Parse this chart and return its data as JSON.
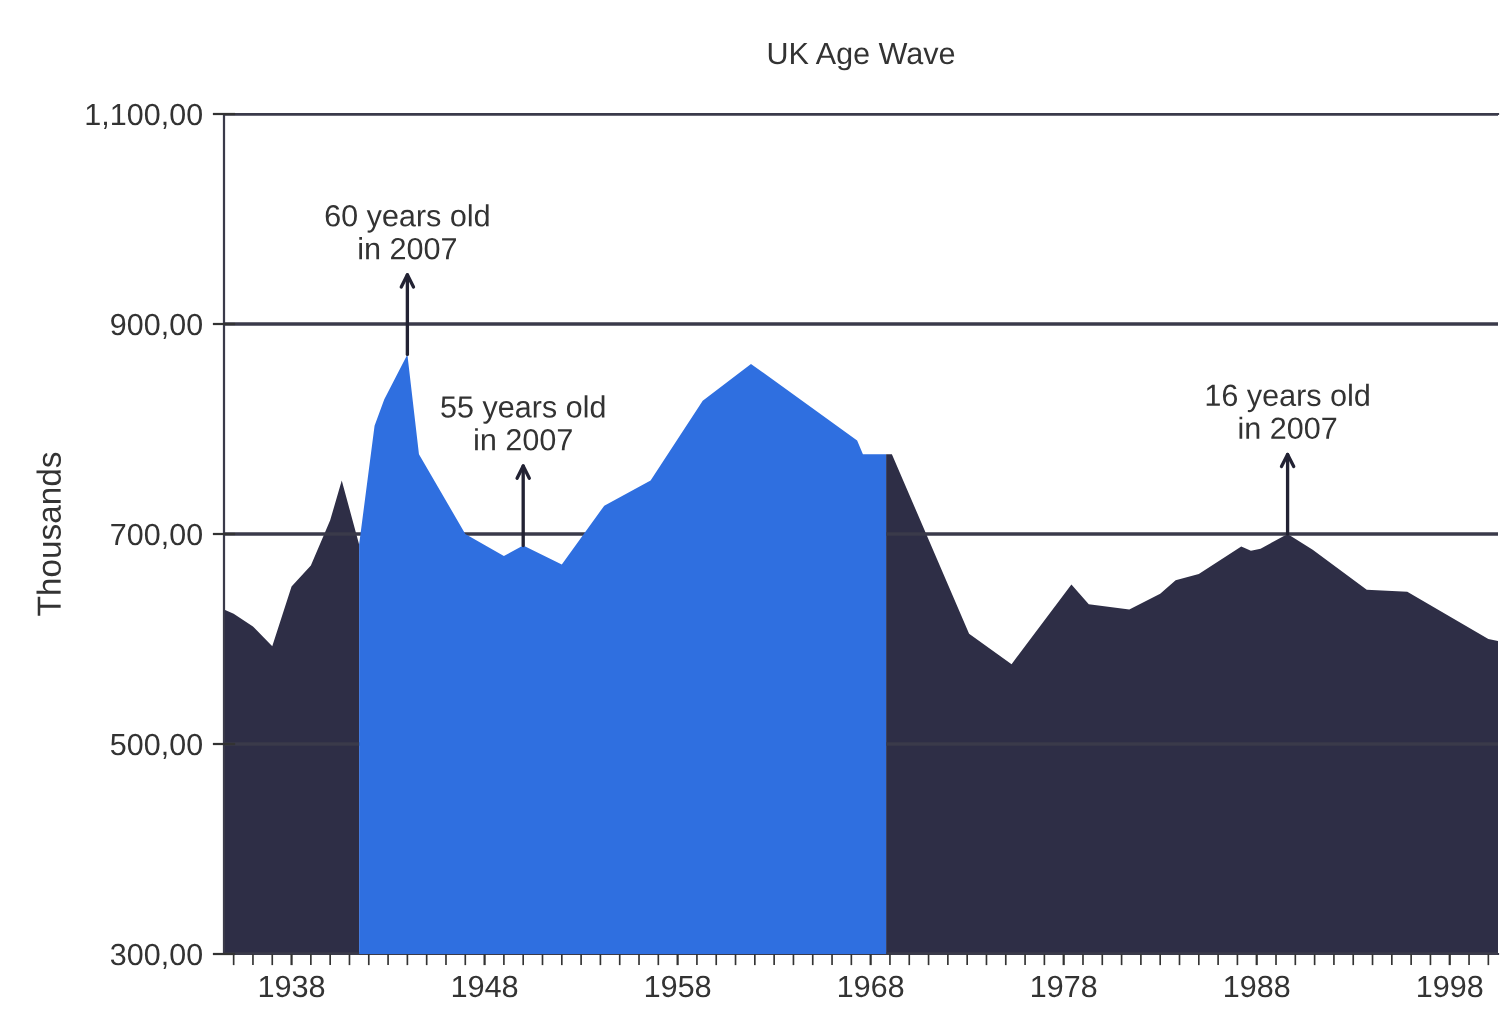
{
  "chart_data": {
    "type": "area",
    "title": "UK Age Wave",
    "ylabel": "Thousands",
    "series": [
      {
        "color": "#2e2e46",
        "x": [
          1934.5,
          1935,
          1936,
          1937,
          1938,
          1939,
          1940,
          1940.6,
          1941.5,
          null,
          1968.8,
          1969.1,
          1973.1,
          1975.3,
          1978.4,
          1979.3,
          1981.4,
          1983,
          1983.8,
          1985,
          1987.2,
          1987.7,
          1988.2,
          1989.6,
          1990.9,
          1993.7,
          1995.8,
          2000,
          2000.5
        ],
        "values": [
          628,
          624,
          612,
          593,
          650,
          670,
          713,
          751,
          690,
          null,
          776,
          776,
          605,
          576,
          652,
          633,
          628,
          643,
          656,
          662,
          688,
          684,
          686,
          700,
          685,
          647,
          645,
          600,
          598
        ]
      },
      {
        "color": "#2f6fe0",
        "x": [
          1941.5,
          1942.3,
          1942.8,
          1944,
          1944.6,
          1947,
          1949,
          1950,
          1952,
          1954.2,
          1956.6,
          1959.3,
          1961.8,
          1967.3,
          1967.6,
          1968.8
        ],
        "values": [
          690,
          803,
          828,
          871,
          776,
          700,
          679,
          689,
          671,
          727,
          751,
          827,
          862,
          789,
          776,
          776
        ]
      }
    ],
    "xlim": [
      1934.5,
      2000.5
    ],
    "xticks": [
      1938,
      1948,
      1958,
      1968,
      1978,
      1988,
      1998
    ],
    "ylim": [
      300,
      1100
    ],
    "yticks": [
      {
        "value": 300,
        "label": "300,00"
      },
      {
        "value": 500,
        "label": "500,00"
      },
      {
        "value": 700,
        "label": "700,00"
      },
      {
        "value": 900,
        "label": "900,00"
      },
      {
        "value": 1100,
        "label": "1,100,00"
      }
    ],
    "grid": "y",
    "annotations": [
      {
        "text": "60 years old\nin 2007",
        "x": 1944,
        "y": 871
      },
      {
        "text": "55 years old\nin 2007",
        "x": 1950,
        "y": 689
      },
      {
        "text": "16 years old\nin 2007",
        "x": 1989.6,
        "y": 700
      }
    ]
  }
}
